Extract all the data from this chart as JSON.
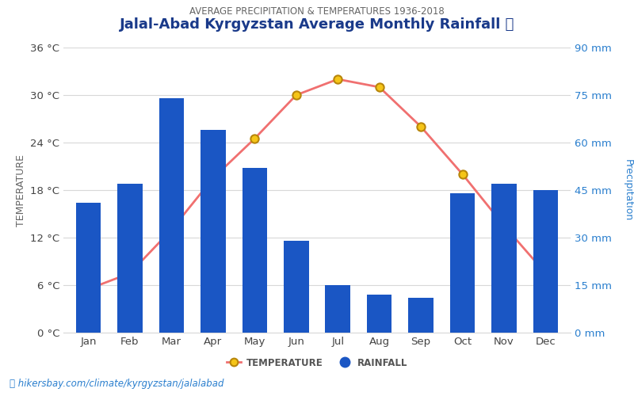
{
  "title": "Jalal-Abad Kyrgyzstan Average Monthly Rainfall 🌧",
  "subtitle": "AVERAGE PRECIPITATION & TEMPERATURES 1936-2018",
  "months": [
    "Jan",
    "Feb",
    "Mar",
    "Apr",
    "May",
    "Jun",
    "Jul",
    "Aug",
    "Sep",
    "Oct",
    "Nov",
    "Dec"
  ],
  "rainfall_mm": [
    41,
    47,
    74,
    64,
    52,
    29,
    15,
    12,
    11,
    44,
    47,
    45
  ],
  "temperature_c": [
    5.5,
    7.5,
    13.0,
    19.5,
    24.5,
    30.0,
    32.0,
    31.0,
    26.0,
    20.0,
    13.5,
    7.5
  ],
  "bar_color": "#1a56c4",
  "line_color": "#f07070",
  "marker_face": "#f5c518",
  "marker_edge": "#b8860b",
  "temp_ylim": [
    0,
    36
  ],
  "temp_yticks": [
    0,
    6,
    12,
    18,
    24,
    30,
    36
  ],
  "rain_ylim": [
    0,
    90
  ],
  "rain_yticks": [
    0,
    15,
    30,
    45,
    60,
    75,
    90
  ],
  "left_ylabel": "TEMPERATURE",
  "right_ylabel": "Precipitation",
  "left_label_color": "#666666",
  "right_label_color": "#2a7fce",
  "tick_color_left": "#444444",
  "tick_color_right": "#2a7fce",
  "footer_text": "hikersbay.com/climate/kyrgyzstan/jalalabad",
  "footer_color": "#2a7fce",
  "title_color": "#1a3a8a",
  "subtitle_color": "#666666",
  "background_color": "#ffffff",
  "grid_color": "#d8d8d8"
}
